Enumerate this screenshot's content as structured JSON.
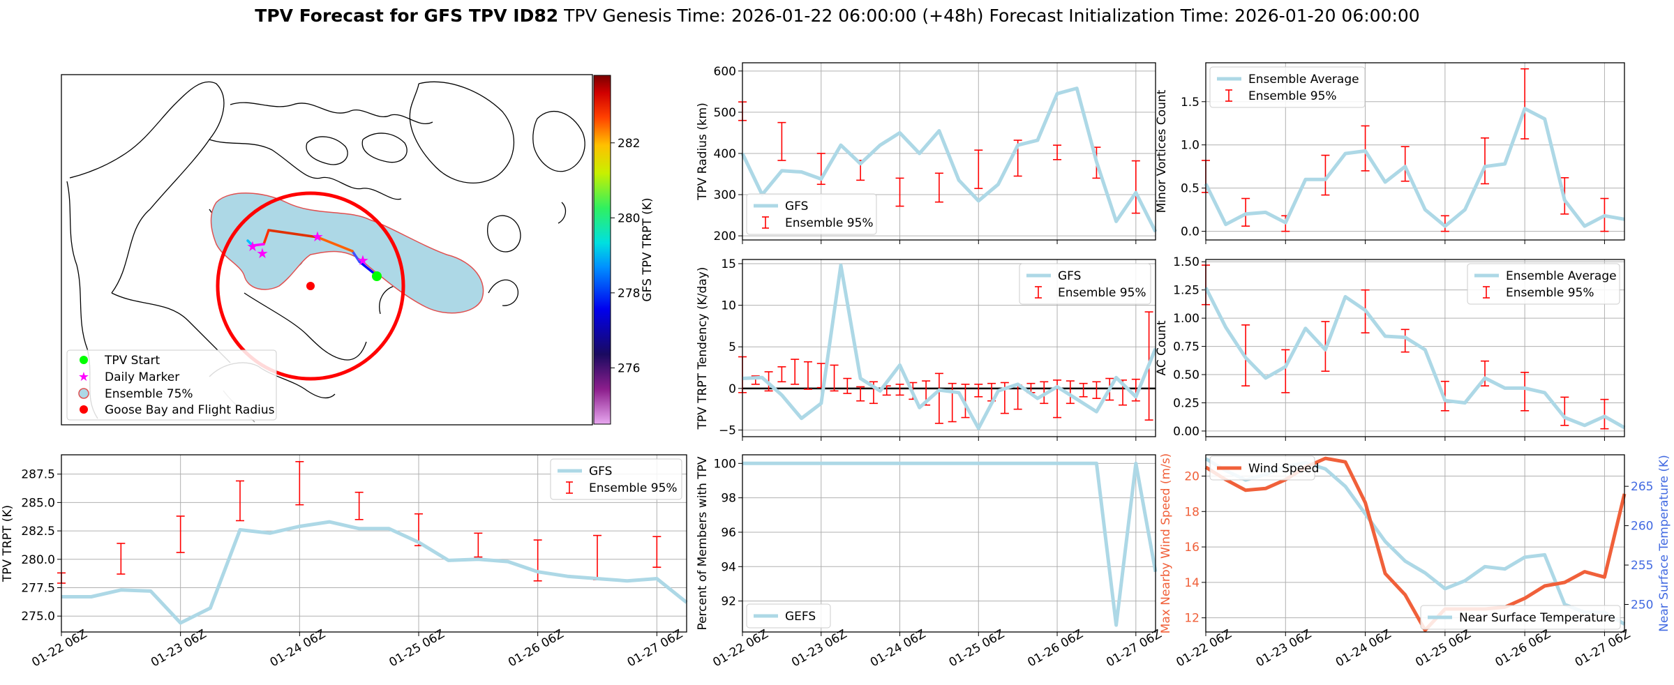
{
  "suptitle": {
    "bold": "TPV Forecast for GFS TPV ID82",
    "genesis": "TPV Genesis Time: 2026-01-22 06:00:00 (+48h)",
    "init": "Forecast Initialization Time: 2026-01-20 06:00:00"
  },
  "colors": {
    "gfs": "#add8e6",
    "ens": "#ff0000",
    "wind": "#f0603a",
    "temp": "#add8e6",
    "temp_axis": "#4169e1"
  },
  "map": {
    "legend": [
      {
        "label": "TPV Start",
        "marker": "circle",
        "color": "#00ff00"
      },
      {
        "label": "Daily Marker",
        "marker": "star",
        "color": "#ff00ff"
      },
      {
        "label": "Ensemble 75%",
        "marker": "ring",
        "color": "#add8e6"
      },
      {
        "label": "Goose Bay and Flight Radius",
        "marker": "circle",
        "color": "#ff0000"
      }
    ],
    "colorbar": {
      "label": "GFS TPV TRPT (K)",
      "ticks": [
        276,
        278,
        280,
        282
      ],
      "range": [
        274.5,
        283.8
      ]
    }
  },
  "time_ticks": [
    "01-22 06Z",
    "01-23 06Z",
    "01-24 06Z",
    "01-25 06Z",
    "01-26 06Z",
    "01-27 06Z"
  ],
  "chart_data": [
    {
      "id": "trpt",
      "type": "line",
      "xlabel": "",
      "ylabel": "TPV TRPT (K)",
      "xlim": [
        0,
        31.5
      ],
      "ylim": [
        273.6,
        289.2
      ],
      "yticks": [
        275.0,
        277.5,
        280.0,
        282.5,
        285.0,
        287.5
      ],
      "ytick_labels": [
        "275.0",
        "277.5",
        "280.0",
        "282.5",
        "285.0",
        "287.5"
      ],
      "line": {
        "name": "GFS",
        "x": [
          0,
          1.5,
          3,
          4.5,
          6,
          7.5,
          9,
          10.5,
          12,
          13.5,
          15,
          16.5,
          18,
          19.5,
          21,
          22.5,
          24,
          25.5,
          27,
          28.5,
          30,
          31.5
        ],
        "y": [
          276.7,
          276.7,
          277.3,
          277.2,
          274.4,
          275.7,
          282.6,
          282.3,
          282.9,
          283.3,
          282.7,
          282.7,
          281.5,
          279.9,
          280.0,
          279.8,
          278.9,
          278.5,
          278.3,
          278.1,
          278.3,
          276.2
        ]
      },
      "errorbars": {
        "name": "Ensemble 95%",
        "x": [
          0,
          3,
          6,
          9,
          12,
          15,
          18,
          21,
          24,
          27,
          30
        ],
        "low": [
          277.9,
          278.7,
          280.6,
          283.4,
          284.8,
          283.5,
          281.2,
          280.2,
          278.1,
          278.2,
          279.3
        ],
        "high": [
          278.8,
          281.4,
          283.8,
          286.9,
          288.6,
          285.9,
          284.0,
          282.3,
          281.7,
          282.1,
          282.0
        ]
      },
      "legend": {
        "loc": "upper right"
      }
    },
    {
      "id": "radius",
      "type": "line",
      "xlabel": "",
      "ylabel": "TPV Radius (km)",
      "xlim": [
        0,
        31.5
      ],
      "ylim": [
        190,
        620
      ],
      "yticks": [
        200,
        300,
        400,
        500,
        600
      ],
      "ytick_labels": [
        "200",
        "300",
        "400",
        "500",
        "600"
      ],
      "line": {
        "name": "GFS",
        "x": [
          0,
          1.5,
          3,
          4.5,
          6,
          7.5,
          9,
          10.5,
          12,
          13.5,
          15,
          16.5,
          18,
          19.5,
          21,
          22.5,
          24,
          25.5,
          27,
          28.5,
          30,
          31.5
        ],
        "y": [
          400,
          300,
          358,
          355,
          338,
          420,
          375,
          420,
          450,
          400,
          455,
          335,
          285,
          325,
          420,
          432,
          545,
          558,
          380,
          235,
          305,
          210
        ]
      },
      "errorbars": {
        "name": "Ensemble 95%",
        "x": [
          0,
          3,
          6,
          9,
          12,
          15,
          18,
          21,
          24,
          27,
          30
        ],
        "low": [
          480,
          383,
          325,
          335,
          272,
          282,
          315,
          345,
          385,
          340,
          255
        ],
        "high": [
          525,
          475,
          400,
          383,
          340,
          352,
          408,
          432,
          420,
          415,
          382
        ]
      },
      "legend": {
        "loc": "lower left"
      }
    },
    {
      "id": "minor",
      "type": "line",
      "xlabel": "",
      "ylabel": "Minor Vortices Count",
      "xlim": [
        0,
        31.5
      ],
      "ylim": [
        -0.1,
        1.95
      ],
      "yticks": [
        0.0,
        0.5,
        1.0,
        1.5
      ],
      "ytick_labels": [
        "0.0",
        "0.5",
        "1.0",
        "1.5"
      ],
      "line": {
        "name": "Ensemble Average",
        "x": [
          0,
          1.5,
          3,
          4.5,
          6,
          7.5,
          9,
          10.5,
          12,
          13.5,
          15,
          16.5,
          18,
          19.5,
          21,
          22.5,
          24,
          25.5,
          27,
          28.5,
          30,
          31.5
        ],
        "y": [
          0.55,
          0.08,
          0.2,
          0.22,
          0.1,
          0.6,
          0.6,
          0.9,
          0.93,
          0.57,
          0.75,
          0.25,
          0.06,
          0.25,
          0.75,
          0.78,
          1.42,
          1.3,
          0.36,
          0.06,
          0.18,
          0.14
        ]
      },
      "errorbars": {
        "name": "Ensemble 95%",
        "x": [
          0,
          3,
          6,
          9,
          12,
          15,
          18,
          21,
          24,
          27,
          30
        ],
        "low": [
          0.45,
          0.06,
          0.0,
          0.42,
          0.7,
          0.58,
          0.0,
          0.55,
          1.07,
          0.2,
          0.0
        ],
        "high": [
          0.82,
          0.38,
          0.18,
          0.88,
          1.22,
          0.98,
          0.18,
          1.08,
          1.88,
          0.62,
          0.38
        ]
      },
      "legend": {
        "loc": "upper left"
      }
    },
    {
      "id": "tendency",
      "type": "line",
      "xlabel": "",
      "ylabel": "TPV TRPT Tendency (K/day)",
      "xlim": [
        0,
        31.5
      ],
      "ylim": [
        -5.8,
        15.5
      ],
      "yticks": [
        -5,
        0,
        5,
        10,
        15
      ],
      "ytick_labels": [
        "−5",
        "0",
        "5",
        "10",
        "15"
      ],
      "zero_line": true,
      "line": {
        "name": "GFS",
        "x": [
          0,
          1.5,
          3,
          4.5,
          6,
          7.5,
          9,
          10.5,
          12,
          13.5,
          15,
          16.5,
          18,
          19.5,
          21,
          22.5,
          24,
          25.5,
          27,
          28.5,
          30,
          31.5
        ],
        "y": [
          1.2,
          1.3,
          -0.8,
          -3.6,
          -1.8,
          14.8,
          1.2,
          -0.3,
          2.8,
          -2.3,
          -0.2,
          -0.5,
          -4.8,
          -0.3,
          0.5,
          -1.2,
          0.2,
          -1.3,
          -2.8,
          1.3,
          -1.0,
          4.8
        ]
      },
      "errorbars": {
        "name": "Ensemble 95%",
        "x": [
          0,
          1,
          2,
          3,
          4,
          5,
          6,
          7,
          8,
          9,
          10,
          11,
          12,
          13,
          14,
          15,
          16,
          17,
          18,
          19,
          20,
          21,
          22,
          23,
          24,
          25,
          26,
          27,
          28,
          29,
          30,
          31
        ],
        "low": [
          -0.5,
          0.5,
          -0.3,
          0.8,
          0.5,
          -0.1,
          0.1,
          -0.3,
          -0.6,
          -1.5,
          -1.8,
          -0.8,
          -0.8,
          -1.3,
          -2.0,
          -4.2,
          -4.0,
          -3.5,
          -1.0,
          -1.5,
          -3.0,
          -2.5,
          -0.5,
          -1.8,
          -3.5,
          -1.8,
          -1.0,
          -1.2,
          -1.4,
          -2.0,
          -1.5,
          -3.8
        ],
        "high": [
          3.8,
          1.5,
          2.0,
          2.6,
          3.5,
          3.2,
          3.0,
          2.8,
          1.2,
          0.2,
          0.8,
          0.3,
          0.5,
          0.7,
          0.9,
          1.8,
          0.6,
          0.5,
          0.5,
          0.6,
          0.7,
          0.4,
          0.6,
          0.8,
          1.0,
          0.9,
          0.6,
          0.8,
          1.2,
          1.0,
          1.1,
          9.2
        ]
      },
      "legend": {
        "loc": "upper right"
      }
    },
    {
      "id": "ac",
      "type": "line",
      "xlabel": "",
      "ylabel": "AC Count",
      "xlim": [
        0,
        31.5
      ],
      "ylim": [
        -0.05,
        1.52
      ],
      "yticks": [
        0.0,
        0.25,
        0.5,
        0.75,
        1.0,
        1.25,
        1.5
      ],
      "ytick_labels": [
        "0.00",
        "0.25",
        "0.50",
        "0.75",
        "1.00",
        "1.25",
        "1.50"
      ],
      "line": {
        "name": "Ensemble Average",
        "x": [
          0,
          1.5,
          3,
          4.5,
          6,
          7.5,
          9,
          10.5,
          12,
          13.5,
          15,
          16.5,
          18,
          19.5,
          21,
          22.5,
          24,
          25.5,
          27,
          28.5,
          30,
          31.5
        ],
        "y": [
          1.27,
          0.92,
          0.65,
          0.47,
          0.57,
          0.91,
          0.72,
          1.19,
          1.07,
          0.84,
          0.83,
          0.72,
          0.27,
          0.25,
          0.47,
          0.38,
          0.38,
          0.34,
          0.12,
          0.05,
          0.13,
          0.03
        ]
      },
      "errorbars": {
        "name": "Ensemble 95%",
        "x": [
          0,
          3,
          6,
          9,
          12,
          15,
          18,
          21,
          24,
          27,
          30
        ],
        "low": [
          1.12,
          0.4,
          0.34,
          0.53,
          0.87,
          0.7,
          0.18,
          0.4,
          0.18,
          0.05,
          0.02
        ],
        "high": [
          1.47,
          0.94,
          0.72,
          0.97,
          1.25,
          0.9,
          0.44,
          0.62,
          0.52,
          0.3,
          0.28
        ]
      },
      "legend": {
        "loc": "upper right"
      }
    },
    {
      "id": "percent",
      "type": "line",
      "xlabel": "",
      "ylabel": "Percent of Members with TPV",
      "xlim": [
        0,
        31.5
      ],
      "ylim": [
        90.2,
        100.5
      ],
      "yticks": [
        92,
        94,
        96,
        98,
        100
      ],
      "ytick_labels": [
        "92",
        "94",
        "96",
        "98",
        "100"
      ],
      "line": {
        "name": "GEFS",
        "x": [
          0,
          1.5,
          3,
          4.5,
          6,
          7.5,
          9,
          10.5,
          12,
          13.5,
          15,
          16.5,
          18,
          19.5,
          21,
          22.5,
          24,
          25.5,
          27,
          28.5,
          30,
          31.5
        ],
        "y": [
          100,
          100,
          100,
          100,
          100,
          100,
          100,
          100,
          100,
          100,
          100,
          100,
          100,
          100,
          100,
          100,
          100,
          100,
          100,
          90.6,
          100,
          93.7
        ]
      },
      "legend": {
        "loc": "lower left"
      }
    },
    {
      "id": "wind_temp",
      "type": "line",
      "xlabel": "",
      "ylabel": "Max Nearby Wind Speed (m/s)",
      "y2label": "Near Surface Temperature (K)",
      "xlim": [
        0,
        31.5
      ],
      "ylim": [
        11.2,
        21.2
      ],
      "yticks": [
        12,
        14,
        16,
        18,
        20
      ],
      "ytick_labels": [
        "12",
        "14",
        "16",
        "18",
        "20"
      ],
      "y2lim": [
        246.5,
        269.0
      ],
      "y2ticks": [
        250,
        255,
        260,
        265
      ],
      "y2tick_labels": [
        "250",
        "255",
        "260",
        "265"
      ],
      "wind": {
        "name": "Wind Speed",
        "x": [
          0,
          1.5,
          3,
          4.5,
          6,
          7.5,
          9,
          10.5,
          12,
          13.5,
          15,
          16.5,
          18,
          19.5,
          21,
          22.5,
          24,
          25.5,
          27,
          28.5,
          30,
          31.5
        ],
        "y": [
          20.5,
          19.8,
          19.2,
          19.3,
          19.8,
          20.5,
          21.0,
          20.8,
          18.5,
          14.5,
          13.3,
          11.3,
          12.5,
          12.5,
          12.5,
          12.6,
          13.1,
          13.8,
          14.0,
          14.6,
          14.3,
          19.0
        ]
      },
      "temp": {
        "name": "Near Surface Temperature",
        "x": [
          0,
          1.5,
          3,
          4.5,
          6,
          7.5,
          9,
          10.5,
          12,
          13.5,
          15,
          16.5,
          18,
          19.5,
          21,
          22.5,
          24,
          25.5,
          27,
          28.5,
          30,
          31.5
        ],
        "y": [
          268.5,
          267.0,
          265.8,
          266.5,
          267.5,
          268.0,
          267.2,
          265.0,
          261.5,
          258.0,
          255.5,
          254.0,
          252.0,
          253.0,
          254.8,
          254.5,
          256.0,
          256.3,
          250.0,
          249.0,
          249.0,
          247.5
        ]
      },
      "legend": {
        "loc": "upper left / lower right"
      }
    }
  ]
}
